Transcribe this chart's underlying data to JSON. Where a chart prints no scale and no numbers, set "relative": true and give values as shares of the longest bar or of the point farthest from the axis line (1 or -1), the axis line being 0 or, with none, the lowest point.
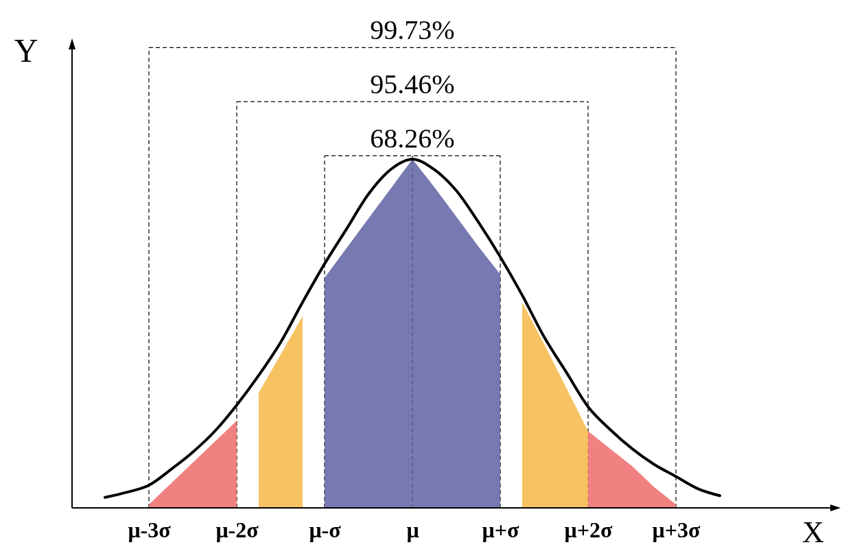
{
  "chart_data": {
    "type": "line",
    "relative": true,
    "xlabel": "X",
    "ylabel": "Y",
    "categories": [
      null,
      null,
      "μ-3σ",
      null,
      null,
      null,
      "μ-2σ",
      null,
      null,
      null,
      "μ-σ",
      null,
      null,
      null,
      "μ",
      null,
      null,
      null,
      "μ+σ",
      null,
      null,
      null,
      "μ+2σ",
      null,
      null,
      null,
      "μ+3σ",
      null,
      null,
      null,
      null,
      null,
      null,
      null
    ],
    "series": [
      {
        "type": "area",
        "color": "#ef6b6b",
        "values": [
          null,
          null,
          0.01,
          0.07,
          0.13,
          0.19,
          0.25,
          null,
          null,
          null,
          null,
          null,
          null,
          null,
          null,
          null,
          null,
          null,
          null,
          null,
          null,
          null,
          null,
          null,
          null,
          null,
          null,
          null,
          null,
          null,
          null,
          null,
          null,
          null
        ]
      },
      {
        "type": "area",
        "color": "#f6b847",
        "values": [
          null,
          null,
          null,
          null,
          null,
          null,
          null,
          0.33,
          0.44,
          0.55,
          null,
          null,
          null,
          null,
          null,
          null,
          null,
          null,
          null,
          null,
          null,
          null,
          null,
          null,
          null,
          null,
          null,
          null,
          null,
          null,
          null,
          null,
          null,
          null
        ]
      },
      {
        "type": "area",
        "color": "#5f62a3",
        "values": [
          null,
          null,
          null,
          null,
          null,
          null,
          null,
          null,
          null,
          null,
          0.66,
          0.745,
          0.83,
          0.915,
          1,
          0.92,
          0.835,
          0.75,
          0.67,
          null,
          null,
          null,
          null,
          null,
          null,
          null,
          null,
          null,
          null,
          null,
          null,
          null,
          null,
          null
        ]
      },
      {
        "type": "area",
        "color": "#f6b847",
        "values": [
          null,
          null,
          null,
          null,
          null,
          null,
          null,
          null,
          null,
          null,
          null,
          null,
          null,
          null,
          null,
          null,
          null,
          null,
          null,
          0.59,
          0.47,
          0.345,
          0.22,
          null,
          null,
          null,
          null,
          null,
          null,
          null,
          null,
          null,
          null,
          null
        ]
      },
      {
        "type": "area",
        "color": "#ef6b6b",
        "values": [
          null,
          null,
          null,
          null,
          null,
          null,
          null,
          null,
          null,
          null,
          null,
          null,
          null,
          null,
          null,
          null,
          null,
          null,
          null,
          null,
          null,
          null,
          0.22,
          0.17,
          0.12,
          0.06,
          0.01,
          null,
          null,
          null,
          null,
          null,
          null,
          null
        ]
      },
      {
        "color": "#000000",
        "marker": "none",
        "line_style": "solid",
        "values": [
          0.03,
          0.045,
          0.065,
          0.11,
          0.16,
          0.22,
          0.295,
          0.38,
          0.475,
          0.59,
          0.7,
          0.8,
          0.9,
          0.97,
          1,
          0.97,
          0.91,
          0.82,
          0.72,
          0.61,
          0.49,
          0.39,
          0.29,
          0.225,
          0.17,
          0.125,
          0.09,
          0.055,
          0.035,
          null,
          null,
          null,
          null,
          null
        ]
      }
    ],
    "ref_lines": [
      {
        "axis": "x",
        "value": "μ-3σ",
        "line_style": "dashed"
      },
      {
        "axis": "x",
        "value": "μ-2σ",
        "line_style": "dashed"
      },
      {
        "axis": "x",
        "value": "μ-σ",
        "line_style": "dashed"
      },
      {
        "axis": "x",
        "value": "μ",
        "line_style": "dashed"
      },
      {
        "axis": "x",
        "value": "μ+σ",
        "line_style": "dashed"
      },
      {
        "axis": "x",
        "value": "μ+2σ",
        "line_style": "dashed"
      },
      {
        "axis": "x",
        "value": "μ+3σ",
        "line_style": "dashed"
      },
      {
        "axis": "y",
        "value": 1.01,
        "line_style": "dashed"
      },
      {
        "axis": "y",
        "value": 1.165,
        "line_style": "dashed"
      },
      {
        "axis": "y",
        "value": 1.32,
        "line_style": "dashed"
      }
    ],
    "annotations": [
      "68.26%",
      "95.46%",
      "99.73%"
    ]
  }
}
